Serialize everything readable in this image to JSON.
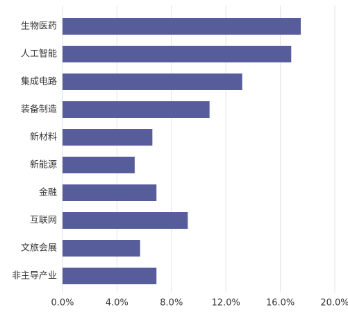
{
  "chart_data": {
    "type": "hbar",
    "categories": [
      "生物医药",
      "人工智能",
      "集成电路",
      "装备制造",
      "新材料",
      "新能源",
      "金融",
      "互联网",
      "文旅会展",
      "非主导产业"
    ],
    "values": [
      17.5,
      16.8,
      13.2,
      10.8,
      6.6,
      5.3,
      6.9,
      9.2,
      5.7,
      6.9
    ],
    "color": "#575c9b",
    "xlim": [
      0,
      20
    ],
    "xticks": [
      {
        "value": 0,
        "label": "0.0%"
      },
      {
        "value": 4,
        "label": "4.0%"
      },
      {
        "value": 8,
        "label": "8.0%"
      },
      {
        "value": 12,
        "label": "12.0%"
      },
      {
        "value": 16,
        "label": "16.0%"
      },
      {
        "value": 20,
        "label": "20.0%"
      }
    ],
    "grid": true
  }
}
